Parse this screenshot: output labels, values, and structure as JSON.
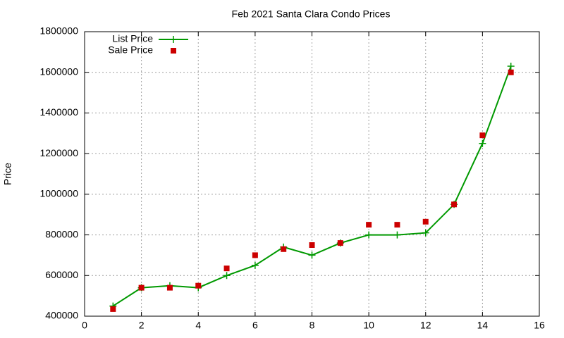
{
  "chart_data": {
    "type": "line-scatter",
    "title": "Feb 2021 Santa Clara Condo Prices",
    "y_label": "Price",
    "x": [
      1,
      2,
      3,
      4,
      5,
      6,
      7,
      8,
      9,
      10,
      11,
      12,
      13,
      14,
      15
    ],
    "series": [
      {
        "name": "List Price",
        "type": "line",
        "color": "#009900",
        "values": [
          450000,
          540000,
          550000,
          540000,
          600000,
          650000,
          740000,
          700000,
          760000,
          800000,
          800000,
          810000,
          950000,
          1250000,
          1630000
        ]
      },
      {
        "name": "Sale Price",
        "type": "scatter",
        "color": "#cc0000",
        "values": [
          435000,
          540000,
          540000,
          550000,
          635000,
          700000,
          730000,
          750000,
          760000,
          850000,
          850000,
          865000,
          950000,
          1290000,
          1600000
        ]
      }
    ],
    "xlim": [
      0,
      16
    ],
    "xticks": [
      0,
      2,
      4,
      6,
      8,
      10,
      12,
      14,
      16
    ],
    "ylim": [
      400000,
      1800000
    ],
    "yticks": [
      400000,
      600000,
      800000,
      1000000,
      1200000,
      1400000,
      1600000,
      1800000
    ],
    "grid": true,
    "legend": "top-left"
  }
}
